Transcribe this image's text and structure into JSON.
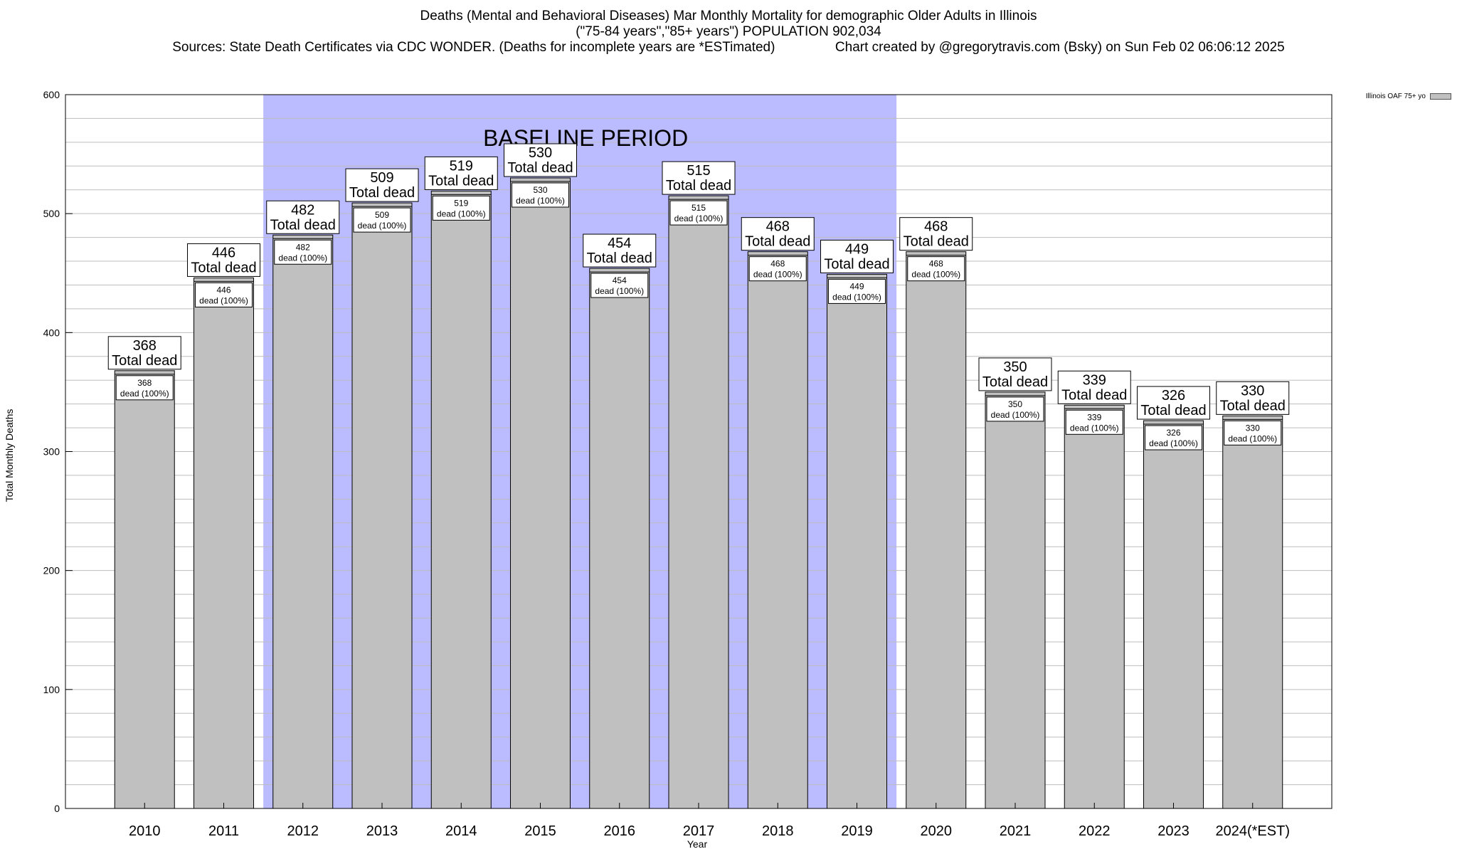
{
  "title": {
    "line1": "Deaths (Mental and Behavioral Diseases) Mar Monthly Mortality for demographic Older Adults in Illinois",
    "line2": "(\"75-84 years\",\"85+ years\") POPULATION 902,034",
    "line3": "Sources: State Death Certificates via CDC WONDER. (Deaths for incomplete years are *ESTimated)                Chart created by @gregorytravis.com (Bsky) on Sun Feb 02 06:06:12 2025"
  },
  "legend": {
    "label": "Illinois OAF 75+ yo"
  },
  "colors": {
    "bar": "#c0c0c0",
    "baseline": "#bbbbff",
    "grid": "#bdbdbd"
  },
  "chart_data": {
    "type": "bar",
    "xlabel": "Year",
    "ylabel": "Total Monthly Deaths",
    "ylim": [
      0,
      600
    ],
    "yticks": [
      0,
      100,
      200,
      300,
      400,
      500,
      600
    ],
    "grid": true,
    "legend_position": "top-right",
    "categories": [
      "2010",
      "2011",
      "2012",
      "2013",
      "2014",
      "2015",
      "2016",
      "2017",
      "2018",
      "2019",
      "2020",
      "2021",
      "2022",
      "2023",
      "2024(*EST)"
    ],
    "series": [
      {
        "name": "Illinois OAF 75+ yo",
        "values": [
          368,
          446,
          482,
          509,
          519,
          530,
          454,
          515,
          468,
          449,
          468,
          350,
          339,
          326,
          330
        ]
      }
    ],
    "total_label": "Total dead",
    "inner_label": "dead (100%)",
    "baseline": {
      "label": "BASELINE PERIOD",
      "from": "2012",
      "to": "2019"
    }
  }
}
